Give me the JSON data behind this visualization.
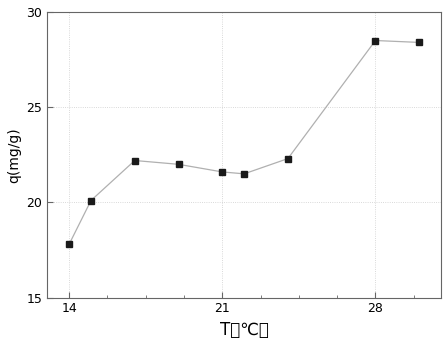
{
  "x": [
    14,
    15,
    17,
    19,
    21,
    22,
    24,
    28,
    30
  ],
  "y": [
    17.8,
    20.1,
    22.2,
    22.0,
    21.6,
    21.5,
    22.3,
    28.5,
    28.4
  ],
  "xlim": [
    13,
    31
  ],
  "ylim": [
    15,
    30
  ],
  "xticks": [
    14,
    21,
    28
  ],
  "yticks": [
    15,
    20,
    25,
    30
  ],
  "xlabel": "T（℃）",
  "ylabel": "q(mg/g)",
  "line_color": "#b0b0b0",
  "marker_color": "#1a1a1a",
  "marker": "s",
  "marker_size": 5,
  "line_width": 0.9,
  "background_color": "#ffffff",
  "grid_color": "#cccccc",
  "grid_linestyle": ":",
  "xlabel_fontsize": 12,
  "ylabel_fontsize": 10,
  "tick_fontsize": 9
}
